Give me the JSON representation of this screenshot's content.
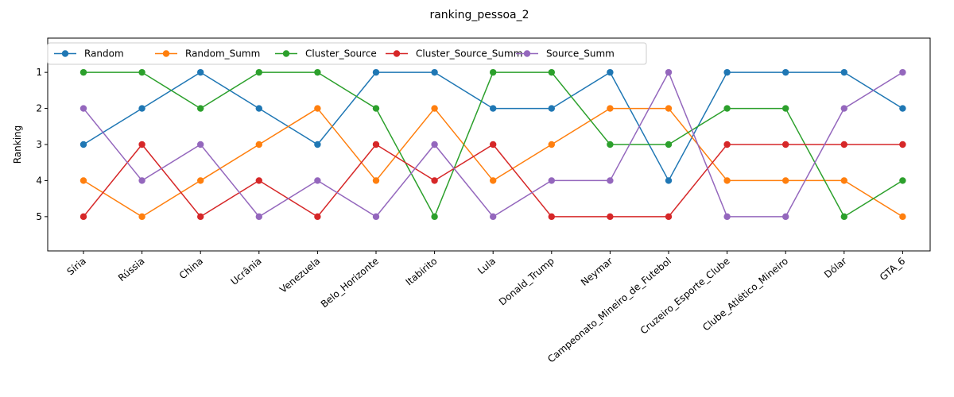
{
  "chart_data": {
    "type": "line",
    "title": "ranking_pessoa_2",
    "xlabel": "",
    "ylabel": "Ranking",
    "y_inverted": true,
    "ylim": [
      5.95,
      0.05
    ],
    "yticks": [
      1,
      2,
      3,
      4,
      5
    ],
    "grid": false,
    "legend_position": "top-left",
    "legend_columns": 5,
    "categories": [
      "Síria",
      "Rússia",
      "China",
      "Ucrânia",
      "Venezuela",
      "Belo_Horizonte",
      "Itabirito",
      "Lula",
      "Donald_Trump",
      "Neymar",
      "Campeonato_Mineiro_de_Futebol",
      "Cruzeiro_Esporte_Clube",
      "Clube_Atlético_Mineiro",
      "Dólar",
      "GTA_6"
    ],
    "series": [
      {
        "name": "Random",
        "color": "#1f77b4",
        "values": [
          3,
          2,
          1,
          2,
          3,
          1,
          1,
          2,
          2,
          1,
          4,
          1,
          1,
          1,
          2
        ]
      },
      {
        "name": "Random_Summ",
        "color": "#ff7f0e",
        "values": [
          4,
          5,
          4,
          3,
          2,
          4,
          2,
          4,
          3,
          2,
          2,
          4,
          4,
          4,
          5
        ]
      },
      {
        "name": "Cluster_Source",
        "color": "#2ca02c",
        "values": [
          1,
          1,
          2,
          1,
          1,
          2,
          5,
          1,
          1,
          3,
          3,
          2,
          2,
          5,
          4
        ]
      },
      {
        "name": "Cluster_Source_Summ",
        "color": "#d62728",
        "values": [
          5,
          3,
          5,
          4,
          5,
          3,
          4,
          3,
          5,
          5,
          5,
          3,
          3,
          3,
          3
        ]
      },
      {
        "name": "Source_Summ",
        "color": "#9467bd",
        "values": [
          2,
          4,
          3,
          5,
          4,
          5,
          3,
          5,
          4,
          4,
          1,
          5,
          5,
          2,
          1
        ]
      }
    ]
  }
}
